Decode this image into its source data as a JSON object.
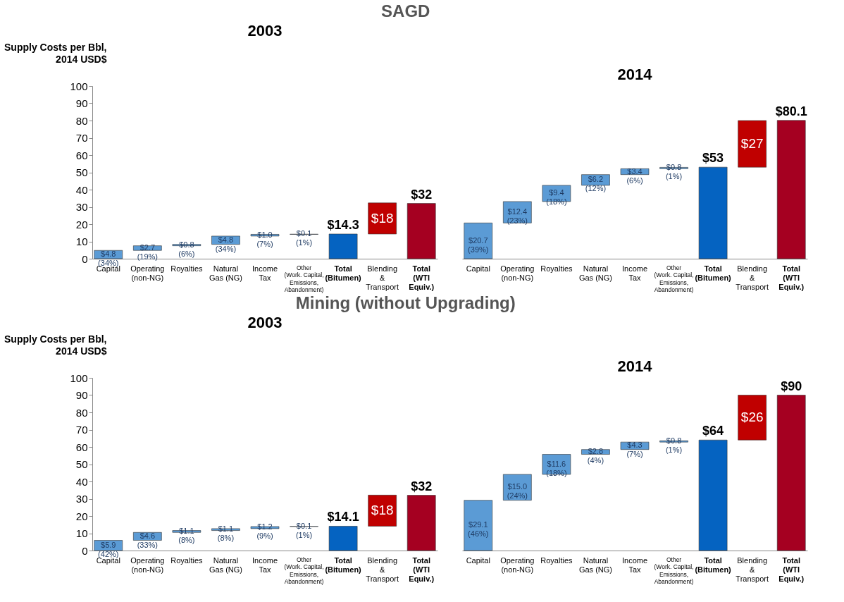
{
  "chart_data": [
    {
      "type": "bar",
      "title": "2003",
      "ylabel": "Supply Costs per Bbl,\n2014 USD$",
      "annotations": [
        "SAGD"
      ],
      "categories": [
        "Capital",
        "Operating\n(non-NG)",
        "Royalties",
        "Natural\nGas (NG)",
        "Income\nTax",
        "Other\n(Work. Capital,\nEmissions,\nAbandonment)",
        "Total\n(Bitumen)",
        "Blending\n&\nTransport",
        "Total\n(WTI\nEquiv.)"
      ],
      "values": [
        4.8,
        2.7,
        0.8,
        4.8,
        1.0,
        0.1,
        14.3,
        18,
        32
      ],
      "base": [
        0,
        4.8,
        7.5,
        8.3,
        13.1,
        14.1,
        0,
        14.3,
        0
      ],
      "colors": [
        "#5b9bd5",
        "#5b9bd5",
        "#5b9bd5",
        "#5b9bd5",
        "#5b9bd5",
        "#5b9bd5",
        "#0563c1",
        "#c00000",
        "#a50021"
      ],
      "value_labels": [
        "$4.8\n(34%)",
        "$2.7\n(19%)",
        "$0.8\n(6%)",
        "$4.8\n(34%)",
        "$1.0\n(7%)",
        "$0.1\n(1%)",
        "$14.3",
        "$18",
        "$32"
      ],
      "ylim": [
        0,
        100
      ],
      "yticks": [
        0,
        10,
        20,
        30,
        40,
        50,
        60,
        70,
        80,
        90,
        100
      ],
      "grid": false
    },
    {
      "type": "bar",
      "title": "2014",
      "categories": [
        "Capital",
        "Operating\n(non-NG)",
        "Royalties",
        "Natural\nGas (NG)",
        "Income\nTax",
        "Other\n(Work. Capital,\nEmissions,\nAbandonment)",
        "Total\n(Bitumen)",
        "Blending\n&\nTransport",
        "Total\n(WTI\nEquiv.)"
      ],
      "values": [
        20.7,
        12.4,
        9.4,
        6.2,
        3.4,
        0.8,
        53,
        27,
        80.1
      ],
      "base": [
        0,
        20.7,
        33.1,
        42.5,
        48.7,
        52.1,
        0,
        53,
        0
      ],
      "colors": [
        "#5b9bd5",
        "#5b9bd5",
        "#5b9bd5",
        "#5b9bd5",
        "#5b9bd5",
        "#5b9bd5",
        "#0563c1",
        "#c00000",
        "#a50021"
      ],
      "value_labels": [
        "$20.7\n(39%)",
        "$12.4\n(23%)",
        "$9.4\n(18%)",
        "$6.2\n(12%)",
        "$3.4\n(6%)",
        "$0.8\n(1%)",
        "$53",
        "$27",
        "$80.1"
      ],
      "ylim": [
        0,
        100
      ],
      "tick_labels": "x",
      "grid": false
    },
    {
      "type": "bar",
      "title": "2003",
      "ylabel": "Supply Costs per Bbl,\n2014 USD$",
      "annotations": [
        "Mining (without Upgrading)"
      ],
      "categories": [
        "Capital",
        "Operating\n(non-NG)",
        "Royalties",
        "Natural\nGas (NG)",
        "Income\nTax",
        "Other\n(Work. Capital,\nEmissions,\nAbandonment)",
        "Total\n(Bitumen)",
        "Blending\n&\nTransport",
        "Total\n(WTI\nEquiv.)"
      ],
      "values": [
        5.9,
        4.6,
        1.1,
        1.1,
        1.2,
        0.1,
        14.1,
        18,
        32
      ],
      "base": [
        0,
        5.9,
        10.5,
        11.6,
        12.7,
        13.9,
        0,
        14.1,
        0
      ],
      "colors": [
        "#5b9bd5",
        "#5b9bd5",
        "#5b9bd5",
        "#5b9bd5",
        "#5b9bd5",
        "#5b9bd5",
        "#0563c1",
        "#c00000",
        "#a50021"
      ],
      "value_labels": [
        "$5.9\n(42%)",
        "$4.6\n(33%)",
        "$1.1\n(8%)",
        "$1.1\n(8%)",
        "$1.2\n(9%)",
        "$0.1\n(1%)",
        "$14.1",
        "$18",
        "$32"
      ],
      "ylim": [
        0,
        100
      ],
      "yticks": [
        0,
        10,
        20,
        30,
        40,
        50,
        60,
        70,
        80,
        90,
        100
      ],
      "grid": false
    },
    {
      "type": "bar",
      "title": "2014",
      "categories": [
        "Capital",
        "Operating\n(non-NG)",
        "Royalties",
        "Natural\nGas (NG)",
        "Income\nTax",
        "Other\n(Work. Capital,\nEmissions,\nAbandonment)",
        "Total\n(Bitumen)",
        "Blending\n&\nTransport",
        "Total\n(WTI\nEquiv.)"
      ],
      "values": [
        29.1,
        15.0,
        11.6,
        2.8,
        4.3,
        0.8,
        64,
        26,
        90
      ],
      "base": [
        0,
        29.1,
        44.1,
        55.7,
        58.5,
        62.8,
        0,
        64,
        0
      ],
      "colors": [
        "#5b9bd5",
        "#5b9bd5",
        "#5b9bd5",
        "#5b9bd5",
        "#5b9bd5",
        "#5b9bd5",
        "#0563c1",
        "#c00000",
        "#a50021"
      ],
      "value_labels": [
        "$29.1\n(46%)",
        "$15.0\n(24%)",
        "$11.6\n(18%)",
        "$2.8\n(4%)",
        "$4.3\n(7%)",
        "$0.8\n(1%)",
        "$64",
        "$26",
        "$90"
      ],
      "ylim": [
        0,
        100
      ],
      "tick_labels": "x",
      "grid": false
    }
  ]
}
